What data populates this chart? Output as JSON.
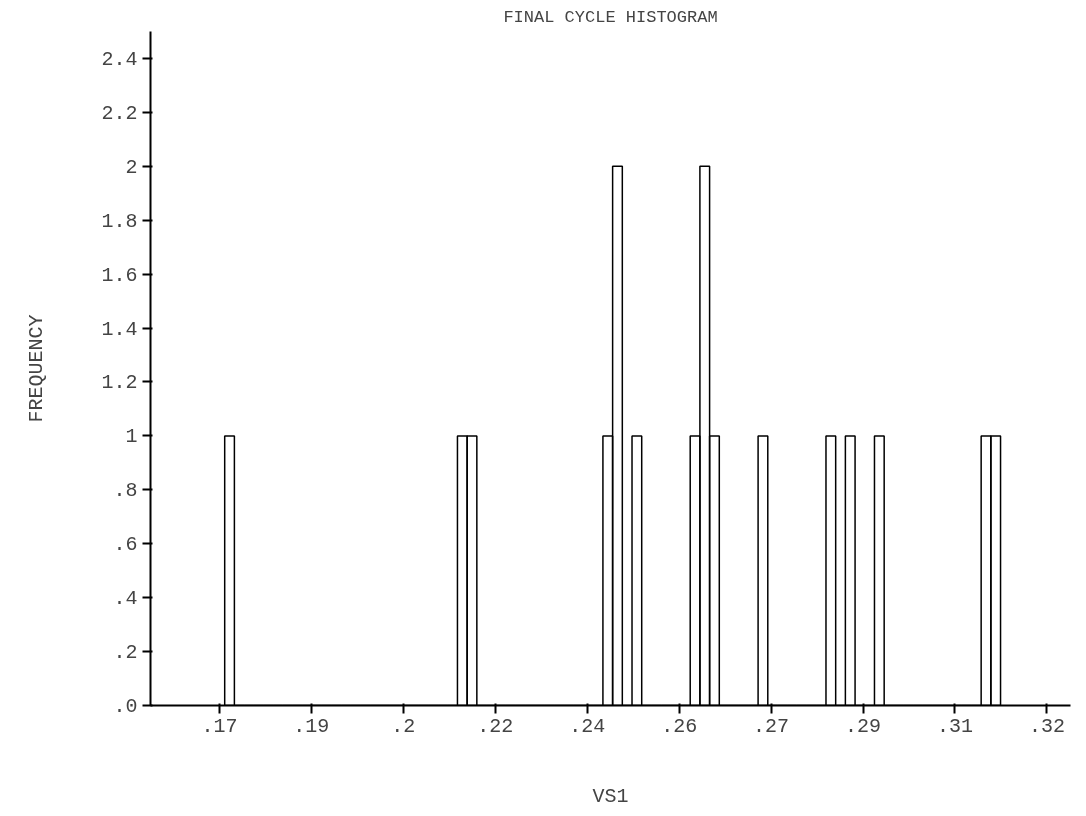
{
  "chart_data": {
    "type": "histogram",
    "title": "FINAL CYCLE HISTOGRAM",
    "xlabel": "VS1",
    "ylabel": "FREQUENCY",
    "bins": [
      0.1695,
      0.17133,
      0.17316,
      0.17499,
      0.17682,
      0.17865,
      0.18048,
      0.18231,
      0.18414,
      0.18597,
      0.1878,
      0.18963,
      0.19146,
      0.19329,
      0.19512,
      0.19695,
      0.19878,
      0.20061,
      0.20244,
      0.20427,
      0.2061,
      0.20793,
      0.20976,
      0.21159,
      0.21342,
      0.21525,
      0.21708,
      0.21891,
      0.22074,
      0.22257,
      0.2244,
      0.22623,
      0.22806,
      0.22989,
      0.23172,
      0.23355,
      0.23538,
      0.23721,
      0.23904,
      0.24087,
      0.2427,
      0.24453,
      0.24636,
      0.24819,
      0.25002,
      0.25185,
      0.25368,
      0.25551,
      0.25734,
      0.25917,
      0.261,
      0.26283,
      0.26466,
      0.26649,
      0.26832,
      0.27015,
      0.27198,
      0.27381,
      0.27564,
      0.27747,
      0.2793,
      0.28113,
      0.28296,
      0.28479,
      0.28662,
      0.28845,
      0.29028,
      0.29211,
      0.29394,
      0.29577,
      0.2976,
      0.29943,
      0.30126,
      0.30309,
      0.30492,
      0.30675,
      0.30858,
      0.31041,
      0.31224,
      0.31407,
      0.3159
    ],
    "values": [
      1,
      0,
      0,
      0,
      0,
      0,
      0,
      0,
      0,
      0,
      0,
      0,
      0,
      0,
      0,
      0,
      0,
      0,
      0,
      0,
      0,
      0,
      0,
      0,
      1,
      1,
      0,
      0,
      0,
      0,
      0,
      0,
      0,
      0,
      0,
      0,
      0,
      0,
      0,
      1,
      2,
      0,
      1,
      0,
      0,
      0,
      0,
      0,
      1,
      2,
      1,
      0,
      0,
      0,
      0,
      1,
      0,
      0,
      0,
      0,
      0,
      0,
      1,
      0,
      1,
      0,
      0,
      1,
      0,
      0,
      0,
      0,
      0,
      0,
      0,
      0,
      0,
      0,
      1,
      1
    ],
    "color": "#000000",
    "xlim": [
      0.1555,
      0.3291
    ],
    "xticks": [
      {
        "value": 0.1685,
        "label": ".17"
      },
      {
        "value": 0.18585,
        "label": ".19"
      },
      {
        "value": 0.2032,
        "label": ".2"
      },
      {
        "value": 0.22055,
        "label": ".22"
      },
      {
        "value": 0.2379,
        "label": ".24"
      },
      {
        "value": 0.25525,
        "label": ".26"
      },
      {
        "value": 0.2726,
        "label": ".27"
      },
      {
        "value": 0.28995,
        "label": ".29"
      },
      {
        "value": 0.3073,
        "label": ".31"
      },
      {
        "value": 0.32465,
        "label": ".32"
      }
    ],
    "ylim": [
      0,
      2.5
    ],
    "yticks": [
      {
        "value": 0,
        "label": ".0"
      },
      {
        "value": 0.2,
        "label": ".2"
      },
      {
        "value": 0.4,
        "label": ".4"
      },
      {
        "value": 0.6,
        "label": ".6"
      },
      {
        "value": 0.8,
        "label": ".8"
      },
      1,
      1.2,
      1.4,
      1.6,
      1.8,
      2,
      2.2,
      2.4
    ],
    "grid": false
  }
}
